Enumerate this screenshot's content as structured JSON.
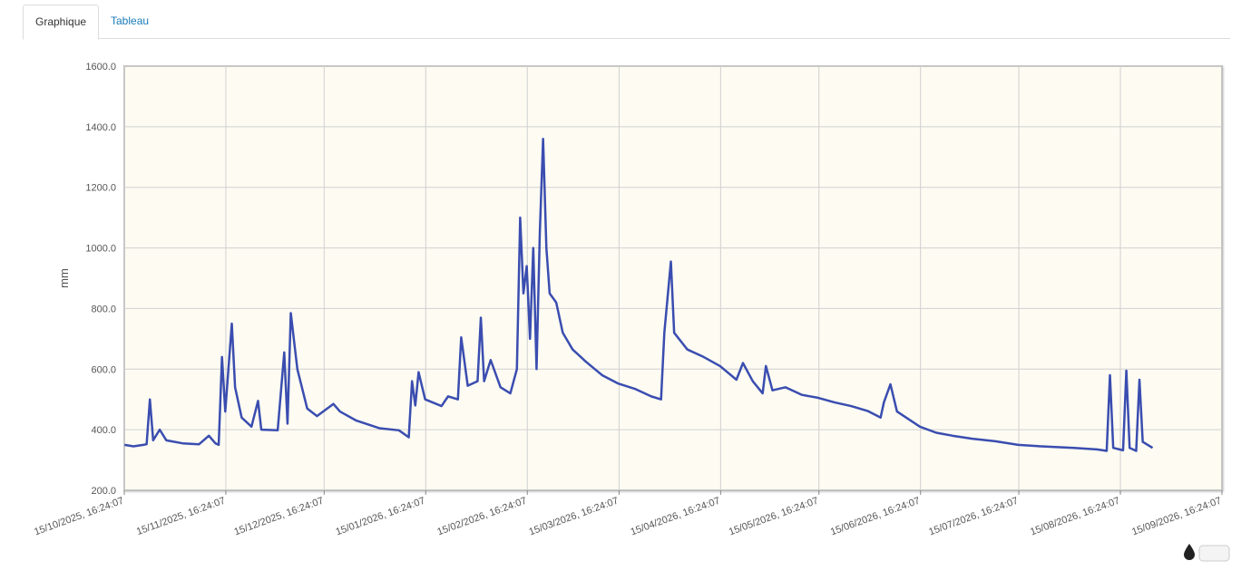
{
  "tabs": [
    "Graphique",
    "Tableau"
  ],
  "active_tab": 0,
  "chart_data": {
    "type": "line",
    "y_label": "mm",
    "grid": true,
    "xlim": [
      "2025-10-15T16:24:07",
      "2026-09-15T16:24:07"
    ],
    "xticks": [
      {
        "value": "2025-10-15T16:24:07",
        "label": "15/10/2025, 16:24:07"
      },
      {
        "value": "2025-11-15T16:24:07",
        "label": "15/11/2025, 16:24:07"
      },
      {
        "value": "2025-12-15T16:24:07",
        "label": "15/12/2025, 16:24:07"
      },
      {
        "value": "2026-01-15T16:24:07",
        "label": "15/01/2026, 16:24:07"
      },
      {
        "value": "2026-02-15T16:24:07",
        "label": "15/02/2026, 16:24:07"
      },
      {
        "value": "2026-03-15T16:24:07",
        "label": "15/03/2026, 16:24:07"
      },
      {
        "value": "2026-04-15T16:24:07",
        "label": "15/04/2026, 16:24:07"
      },
      {
        "value": "2026-05-15T16:24:07",
        "label": "15/05/2026, 16:24:07"
      },
      {
        "value": "2026-06-15T16:24:07",
        "label": "15/06/2026, 16:24:07"
      },
      {
        "value": "2026-07-15T16:24:07",
        "label": "15/07/2026, 16:24:07"
      },
      {
        "value": "2026-08-15T16:24:07",
        "label": "15/08/2026, 16:24:07"
      },
      {
        "value": "2026-09-15T16:24:07",
        "label": "15/09/2026, 16:24:07"
      }
    ],
    "ylim": [
      200,
      1600
    ],
    "yticks": [
      {
        "value": 200,
        "label": "200.0"
      },
      {
        "value": 400,
        "label": "400.0"
      },
      {
        "value": 600,
        "label": "600.0"
      },
      {
        "value": 800,
        "label": "800.0"
      },
      {
        "value": 1000,
        "label": "1000.0"
      },
      {
        "value": 1200,
        "label": "1200.0"
      },
      {
        "value": 1400,
        "label": "1400.0"
      },
      {
        "value": 1600,
        "label": "1600.0"
      }
    ],
    "x": [
      "2025-10-15T18:00:00",
      "2025-10-18T12:00:00",
      "2025-10-21T12:00:00",
      "2025-10-22T12:00:00",
      "2025-10-23T12:00:00",
      "2025-10-24T12:00:00",
      "2025-10-26T12:00:00",
      "2025-10-28T12:00:00",
      "2025-11-02T12:00:00",
      "2025-11-07T12:00:00",
      "2025-11-10T12:00:00",
      "2025-11-12T12:00:00",
      "2025-11-13T12:00:00",
      "2025-11-14T12:00:00",
      "2025-11-15T12:00:00",
      "2025-11-17T12:00:00",
      "2025-11-18T12:00:00",
      "2025-11-20T12:00:00",
      "2025-11-23T12:00:00",
      "2025-11-25T12:00:00",
      "2025-11-26T12:00:00",
      "2025-12-01T12:00:00",
      "2025-12-03T12:00:00",
      "2025-12-04T12:00:00",
      "2025-12-05T12:00:00",
      "2025-12-07T12:00:00",
      "2025-12-10T12:00:00",
      "2025-12-13T12:00:00",
      "2025-12-18T12:00:00",
      "2025-12-20T12:00:00",
      "2025-12-25T12:00:00",
      "2026-01-01T12:00:00",
      "2026-01-07T12:00:00",
      "2026-01-10T12:00:00",
      "2026-01-11T12:00:00",
      "2026-01-12T12:00:00",
      "2026-01-13T12:00:00",
      "2026-01-15T12:00:00",
      "2026-01-20T12:00:00",
      "2026-01-22T12:00:00",
      "2026-01-25T12:00:00",
      "2026-01-26T12:00:00",
      "2026-01-28T12:00:00",
      "2026-01-31T12:00:00",
      "2026-02-01T12:00:00",
      "2026-02-02T12:00:00",
      "2026-02-04T12:00:00",
      "2026-02-07T12:00:00",
      "2026-02-10T12:00:00",
      "2026-02-12T12:00:00",
      "2026-02-13T12:00:00",
      "2026-02-14T12:00:00",
      "2026-02-15T12:00:00",
      "2026-02-16T12:00:00",
      "2026-02-17T12:00:00",
      "2026-02-18T12:00:00",
      "2026-02-19T12:00:00",
      "2026-02-20T12:00:00",
      "2026-02-21T12:00:00",
      "2026-02-22T12:00:00",
      "2026-02-24T12:00:00",
      "2026-02-26T12:00:00",
      "2026-03-01T12:00:00",
      "2026-03-05T12:00:00",
      "2026-03-10T12:00:00",
      "2026-03-15T12:00:00",
      "2026-03-20T12:00:00",
      "2026-03-25T12:00:00",
      "2026-03-28T12:00:00",
      "2026-03-29T12:00:00",
      "2026-03-31T12:00:00",
      "2026-04-01T12:00:00",
      "2026-04-05T12:00:00",
      "2026-04-10T12:00:00",
      "2026-04-15T12:00:00",
      "2026-04-20T12:00:00",
      "2026-04-22T12:00:00",
      "2026-04-25T12:00:00",
      "2026-04-28T12:00:00",
      "2026-04-29T12:00:00",
      "2026-05-01T12:00:00",
      "2026-05-05T12:00:00",
      "2026-05-10T12:00:00",
      "2026-05-15T12:00:00",
      "2026-05-20T12:00:00",
      "2026-05-25T12:00:00",
      "2026-05-30T12:00:00",
      "2026-06-03T12:00:00",
      "2026-06-04T12:00:00",
      "2026-06-06T12:00:00",
      "2026-06-08T12:00:00",
      "2026-06-15T12:00:00",
      "2026-06-20T12:00:00",
      "2026-06-25T12:00:00",
      "2026-07-01T12:00:00",
      "2026-07-08T12:00:00",
      "2026-07-15T12:00:00",
      "2026-07-22T12:00:00",
      "2026-08-01T12:00:00",
      "2026-08-08T12:00:00",
      "2026-08-11T12:00:00",
      "2026-08-12T12:00:00",
      "2026-08-13T12:00:00",
      "2026-08-16T12:00:00",
      "2026-08-17T12:00:00",
      "2026-08-18T12:00:00",
      "2026-08-20T12:00:00",
      "2026-08-21T12:00:00",
      "2026-08-22T12:00:00",
      "2026-08-25T12:00:00"
    ],
    "series": [
      {
        "color": "#3a4db0",
        "values": [
          350,
          345,
          350,
          352,
          500,
          365,
          400,
          365,
          355,
          352,
          380,
          355,
          350,
          640,
          460,
          750,
          540,
          440,
          410,
          495,
          400,
          398,
          655,
          420,
          785,
          600,
          470,
          445,
          485,
          460,
          430,
          405,
          398,
          375,
          560,
          480,
          590,
          500,
          478,
          510,
          500,
          705,
          545,
          560,
          770,
          560,
          630,
          540,
          520,
          600,
          1100,
          850,
          940,
          700,
          1000,
          600,
          1050,
          1360,
          1000,
          850,
          820,
          720,
          665,
          625,
          580,
          552,
          535,
          510,
          500,
          720,
          955,
          720,
          665,
          640,
          610,
          565,
          620,
          560,
          520,
          610,
          530,
          540,
          515,
          505,
          490,
          478,
          462,
          440,
          490,
          550,
          460,
          410,
          390,
          380,
          370,
          362,
          350,
          345,
          340,
          335,
          330,
          580,
          340,
          332,
          595,
          340,
          330,
          565,
          360,
          340
        ]
      }
    ]
  }
}
